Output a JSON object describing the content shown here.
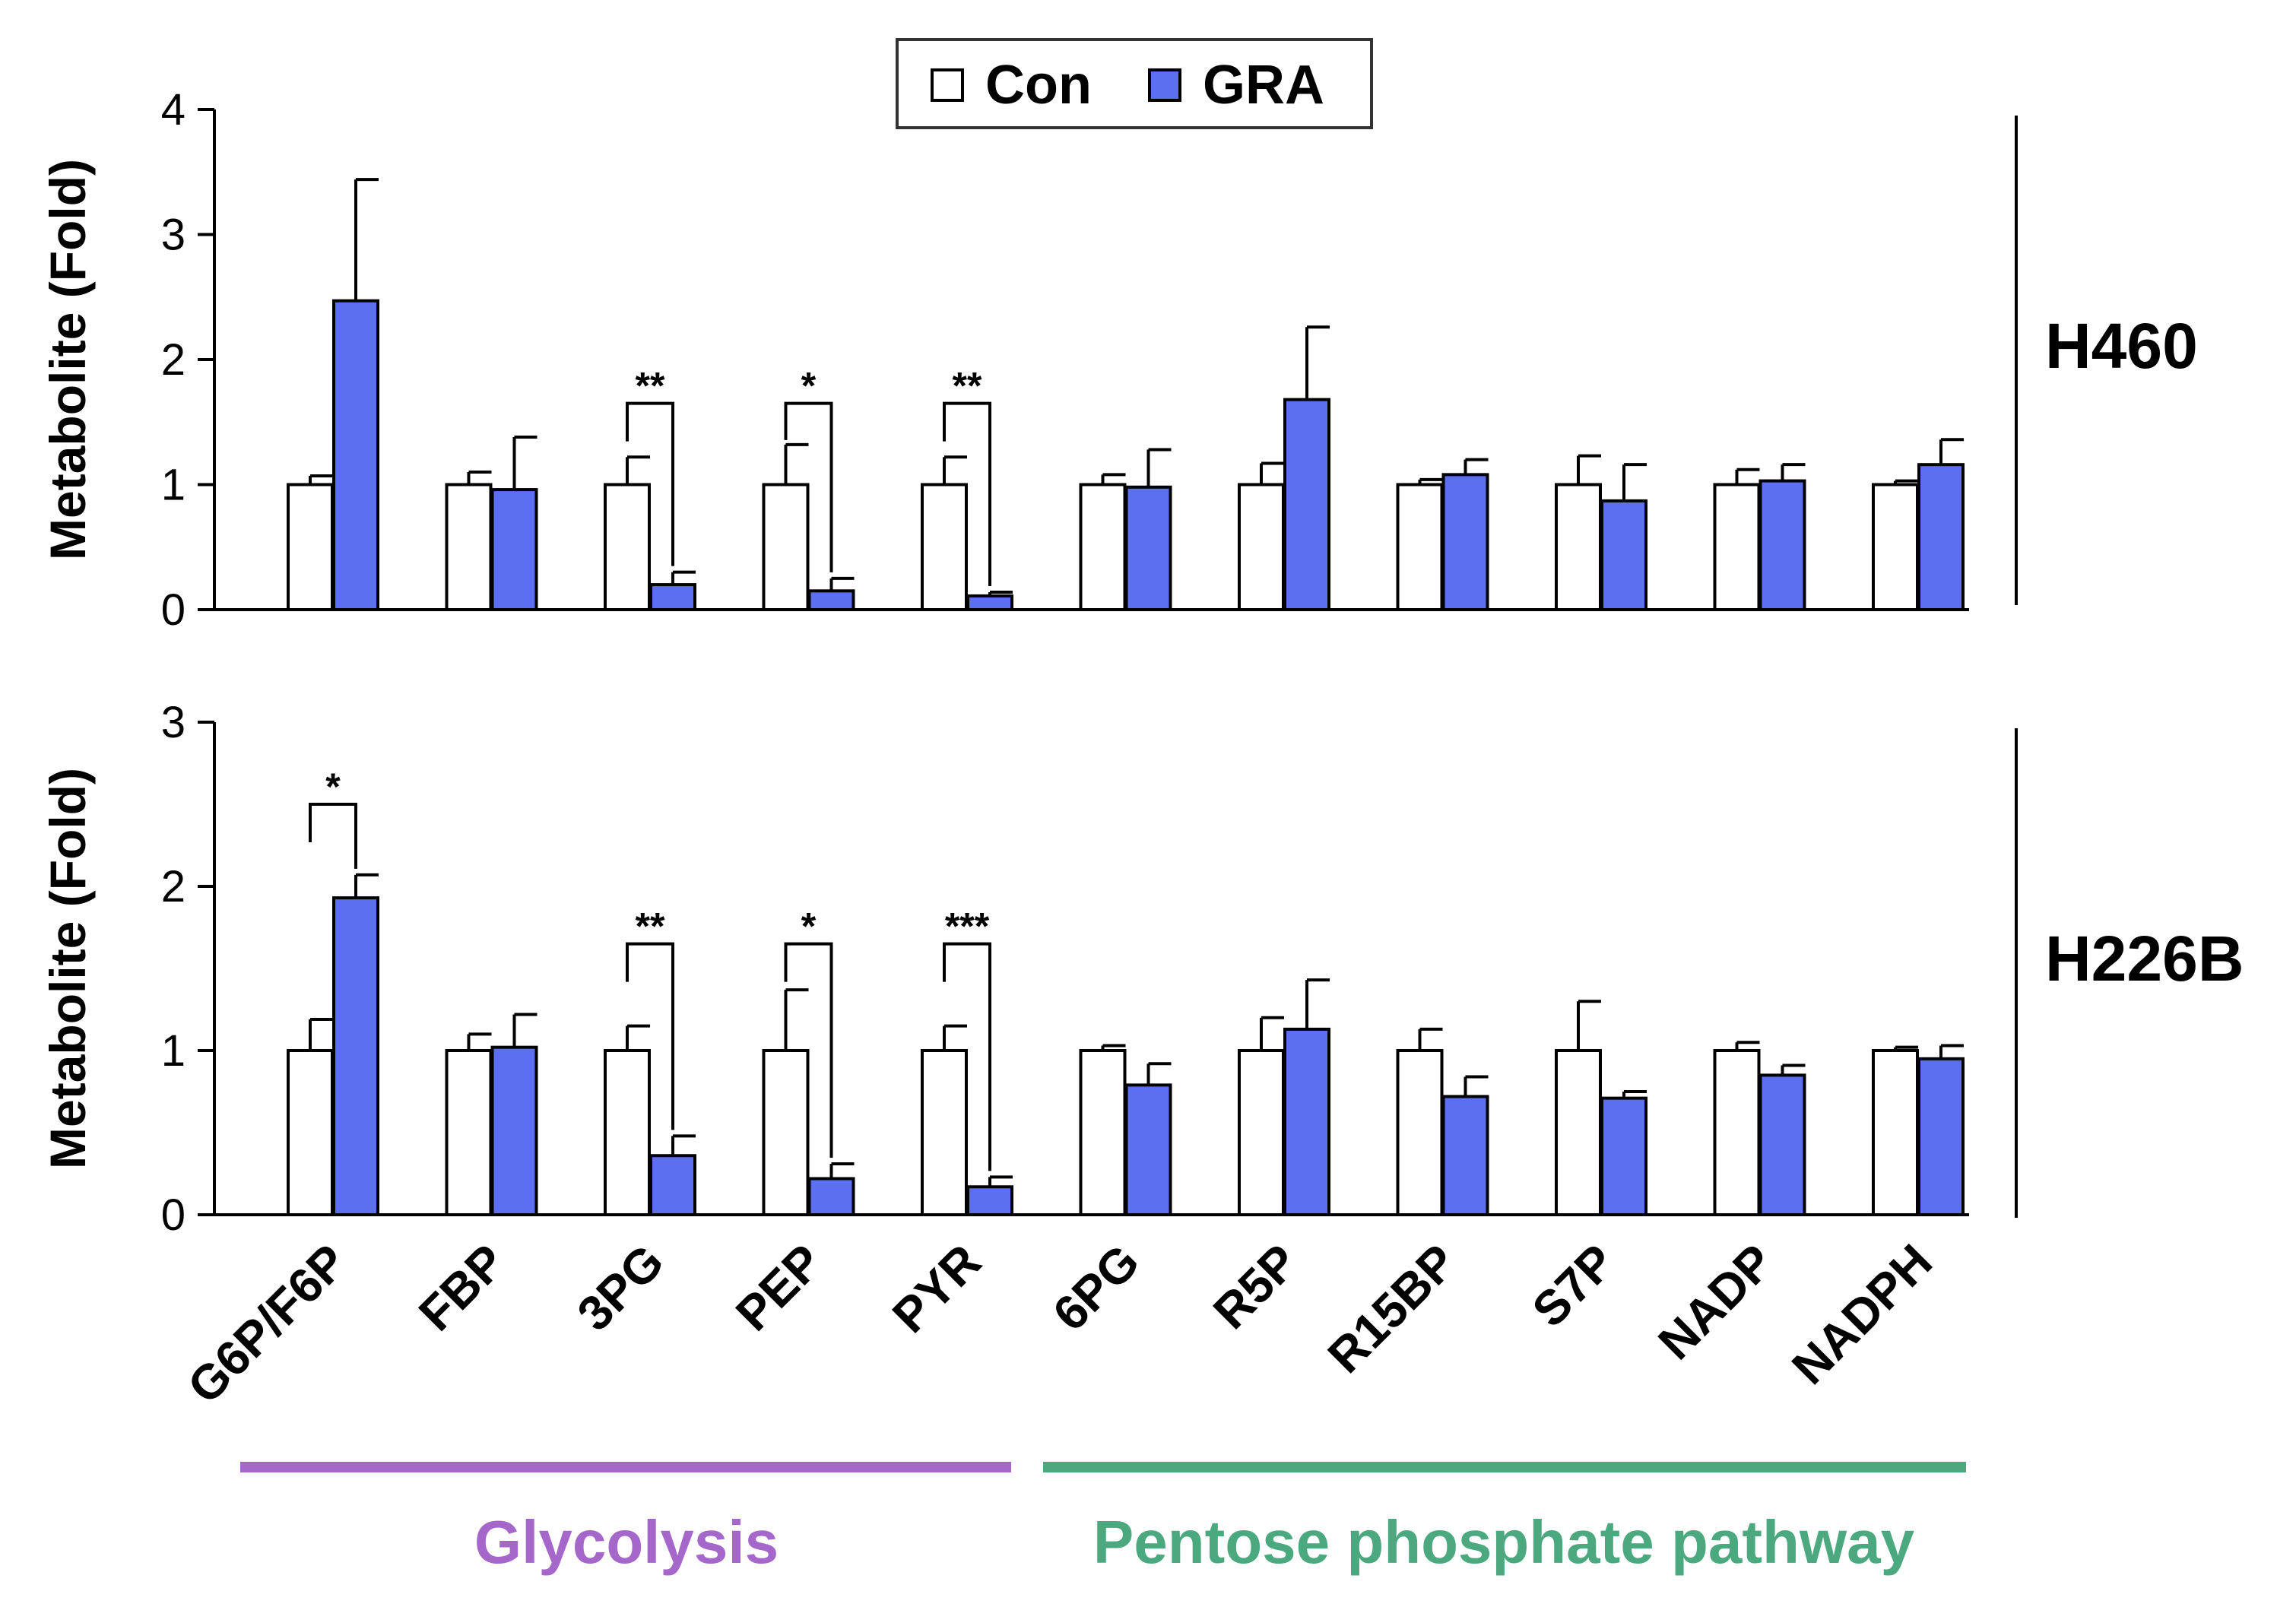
{
  "legend": {
    "items": [
      {
        "label": "Con",
        "color": "#ffffff"
      },
      {
        "label": "GRA",
        "color": "#5b6ff0"
      }
    ]
  },
  "colors": {
    "con": "#ffffff",
    "gra": "#5b6ff0",
    "glycolysis": "#a567c9",
    "pentose": "#4ca97f"
  },
  "chart_data": [
    {
      "type": "bar",
      "panel": "H460",
      "ylabel": "Metabolite (Fold)",
      "ylim": [
        0,
        4
      ],
      "yticks": [
        "0",
        "1",
        "2",
        "3",
        "4"
      ],
      "categories": [
        "G6P/F6P",
        "FBP",
        "3PG",
        "PEP",
        "PYR",
        "6PG",
        "R5P",
        "R15BP",
        "S7P",
        "NADP",
        "NADPH"
      ],
      "series": [
        {
          "name": "Con",
          "values": [
            1.0,
            1.0,
            1.0,
            1.0,
            1.0,
            1.0,
            1.0,
            1.0,
            1.0,
            1.0,
            1.0
          ],
          "errors": [
            0.07,
            0.1,
            0.22,
            0.32,
            0.22,
            0.08,
            0.17,
            0.04,
            0.23,
            0.12,
            0.03
          ]
        },
        {
          "name": "GRA",
          "values": [
            2.47,
            0.96,
            0.2,
            0.15,
            0.11,
            0.98,
            1.68,
            1.08,
            0.87,
            1.03,
            1.16
          ],
          "errors": [
            0.97,
            0.42,
            0.1,
            0.1,
            0.03,
            0.3,
            0.58,
            0.12,
            0.29,
            0.13,
            0.2
          ]
        }
      ],
      "significance": [
        {
          "category": "3PG",
          "label": "**",
          "level": 1.65
        },
        {
          "category": "PEP",
          "label": "*",
          "level": 1.65
        },
        {
          "category": "PYR",
          "label": "**",
          "level": 1.65
        }
      ]
    },
    {
      "type": "bar",
      "panel": "H226B",
      "ylabel": "Metabolite (Fold)",
      "ylim": [
        0,
        3
      ],
      "yticks": [
        "0",
        "1",
        "2",
        "3"
      ],
      "categories": [
        "G6P/F6P",
        "FBP",
        "3PG",
        "PEP",
        "PYR",
        "6PG",
        "R5P",
        "R15BP",
        "S7P",
        "NADP",
        "NADPH"
      ],
      "series": [
        {
          "name": "Con",
          "values": [
            1.0,
            1.0,
            1.0,
            1.0,
            1.0,
            1.0,
            1.0,
            1.0,
            1.0,
            1.0,
            1.0
          ],
          "errors": [
            0.19,
            0.1,
            0.15,
            0.37,
            0.15,
            0.03,
            0.2,
            0.13,
            0.3,
            0.05,
            0.02
          ]
        },
        {
          "name": "GRA",
          "values": [
            1.93,
            1.02,
            0.36,
            0.22,
            0.17,
            0.79,
            1.13,
            0.72,
            0.71,
            0.85,
            0.95
          ],
          "errors": [
            0.14,
            0.2,
            0.12,
            0.09,
            0.06,
            0.13,
            0.3,
            0.12,
            0.04,
            0.06,
            0.08
          ]
        }
      ],
      "significance": [
        {
          "category": "G6P/F6P",
          "label": "*",
          "level": 2.5
        },
        {
          "category": "3PG",
          "label": "**",
          "level": 1.65
        },
        {
          "category": "PEP",
          "label": "*",
          "level": 1.65
        },
        {
          "category": "PYR",
          "label": "***",
          "level": 1.65
        }
      ]
    }
  ],
  "groups": [
    {
      "label": "Glycolysis",
      "from": "G6P/F6P",
      "to": "PYR",
      "color": "#a567c9"
    },
    {
      "label": "Pentose phosphate pathway",
      "from": "6PG",
      "to": "NADPH",
      "color": "#4ca97f"
    }
  ]
}
